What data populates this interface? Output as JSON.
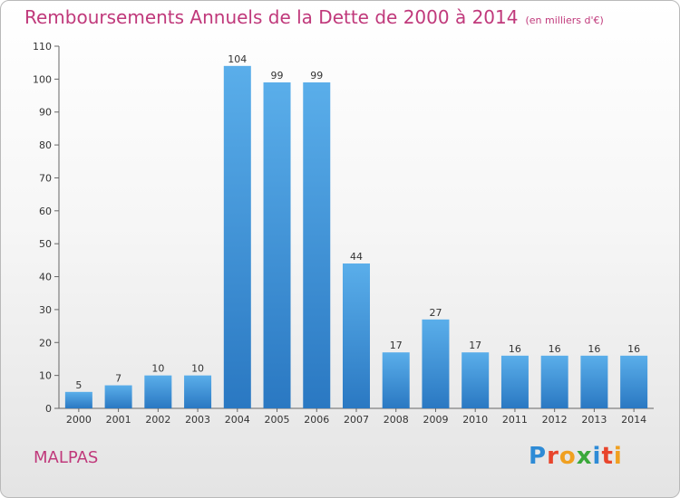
{
  "title": "Remboursements Annuels de la Dette de 2000 à 2014",
  "unit_note": "(en milliers d'€)",
  "town": "MALPAS",
  "logo_text": "Proxiti",
  "chart_data": {
    "type": "bar",
    "title": "Remboursements Annuels de la Dette de 2000 à 2014",
    "subtitle": "(en milliers d'€)",
    "categories": [
      "2000",
      "2001",
      "2002",
      "2003",
      "2004",
      "2005",
      "2006",
      "2007",
      "2008",
      "2009",
      "2010",
      "2011",
      "2012",
      "2013",
      "2014"
    ],
    "values": [
      5,
      7,
      10,
      10,
      104,
      99,
      99,
      44,
      17,
      27,
      17,
      16,
      16,
      16,
      16
    ],
    "xlabel": "",
    "ylabel": "",
    "ylim": [
      0,
      110
    ],
    "yticks": [
      0,
      10,
      20,
      30,
      40,
      50,
      60,
      70,
      80,
      90,
      100,
      110
    ],
    "grid": false,
    "legend": "none",
    "bar_color": "#3a92d8"
  }
}
